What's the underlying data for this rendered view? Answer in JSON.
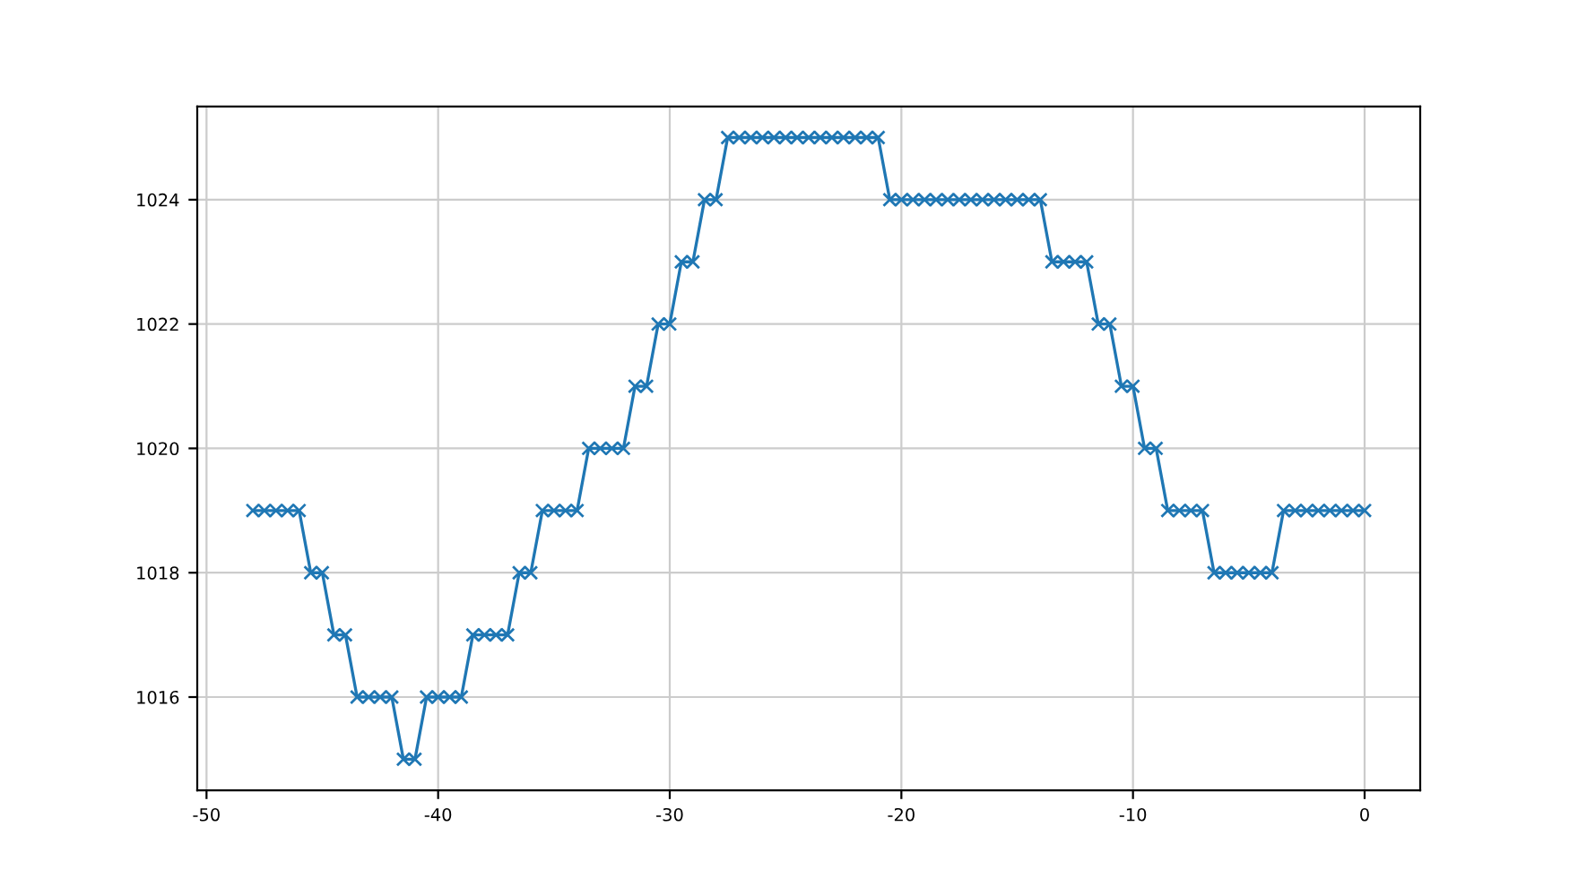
{
  "chart_data": {
    "type": "line",
    "x": [
      -48,
      -47.5,
      -47,
      -46.5,
      -46,
      -45.5,
      -45,
      -44.5,
      -44,
      -43.5,
      -43,
      -42.5,
      -42,
      -41.5,
      -41,
      -40.5,
      -40,
      -39.5,
      -39,
      -38.5,
      -38,
      -37.5,
      -37,
      -36.5,
      -36,
      -35.5,
      -35,
      -34.5,
      -34,
      -33.5,
      -33,
      -32.5,
      -32,
      -31.5,
      -31,
      -30.5,
      -30,
      -29.5,
      -29,
      -28.5,
      -28,
      -27.5,
      -27,
      -26.5,
      -26,
      -25.5,
      -25,
      -24.5,
      -24,
      -23.5,
      -23,
      -22.5,
      -22,
      -21.5,
      -21,
      -20.5,
      -20,
      -19.5,
      -19,
      -18.5,
      -18,
      -17.5,
      -17,
      -16.5,
      -16,
      -15.5,
      -15,
      -14.5,
      -14,
      -13.5,
      -13,
      -12.5,
      -12,
      -11.5,
      -11,
      -10.5,
      -10,
      -9.5,
      -9,
      -8.5,
      -8,
      -7.5,
      -7,
      -6.5,
      -6,
      -5.5,
      -5,
      -4.5,
      -4,
      -3.5,
      -3,
      -2.5,
      -2,
      -1.5,
      -1,
      -0.5,
      0
    ],
    "series": [
      {
        "color": "#1f77b4",
        "values": [
          1019,
          1019,
          1019,
          1019,
          1019,
          1018,
          1018,
          1017,
          1017,
          1016,
          1016,
          1016,
          1016,
          1015,
          1015,
          1016,
          1016,
          1016,
          1016,
          1017,
          1017,
          1017,
          1017,
          1018,
          1018,
          1019,
          1019,
          1019,
          1019,
          1020,
          1020,
          1020,
          1020,
          1021,
          1021,
          1022,
          1022,
          1023,
          1023,
          1024,
          1024,
          1025,
          1025,
          1025,
          1025,
          1025,
          1025,
          1025,
          1025,
          1025,
          1025,
          1025,
          1025,
          1025,
          1025,
          1024,
          1024,
          1024,
          1024,
          1024,
          1024,
          1024,
          1024,
          1024,
          1024,
          1024,
          1024,
          1024,
          1024,
          1023,
          1023,
          1023,
          1023,
          1022,
          1022,
          1021,
          1021,
          1020,
          1020,
          1019,
          1019,
          1019,
          1019,
          1018,
          1018,
          1018,
          1018,
          1018,
          1018,
          1019,
          1019,
          1019,
          1019,
          1019,
          1019,
          1019,
          1019
        ]
      }
    ],
    "xlim": [
      -50.4,
      2.4
    ],
    "xticks": [
      -50,
      -40,
      -30,
      -20,
      -10,
      0
    ],
    "ylim": [
      1014.5,
      1025.5
    ],
    "yticks": [
      1016,
      1018,
      1020,
      1022,
      1024
    ],
    "grid": true,
    "marker": "cross",
    "line_style": "solid"
  }
}
